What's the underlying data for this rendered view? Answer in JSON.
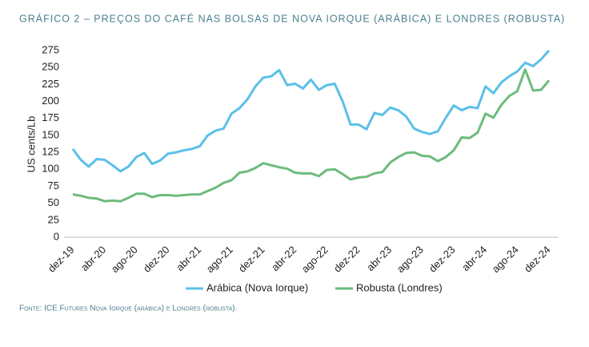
{
  "chart_data": {
    "type": "line",
    "title": "GRÁFICO 2 – PREÇOS DO CAFÉ NAS BOLSAS DE NOVA IORQUE (ARÁBICA) E LONDRES (ROBUSTA)",
    "y_label": "US cents/Lb",
    "source": "Fonte: ICE Futures Nova Iorque (arábica) e Londres (robusta).",
    "categories": [
      "dez-19",
      null,
      null,
      null,
      "abr-20",
      null,
      null,
      null,
      "ago-20",
      null,
      null,
      null,
      "dez-20",
      null,
      null,
      null,
      "abr-21",
      null,
      null,
      null,
      "ago-21",
      null,
      null,
      null,
      "dez-21",
      null,
      null,
      null,
      "abr-22",
      null,
      null,
      null,
      "ago-22",
      null,
      null,
      null,
      "dez-22",
      null,
      null,
      null,
      "abr-23",
      null,
      null,
      null,
      "ago-23",
      null,
      null,
      null,
      "dez-23",
      null,
      null,
      null,
      "abr-24",
      null,
      null,
      null,
      "ago-24",
      null,
      null,
      null,
      "dez-24"
    ],
    "series": [
      {
        "name": "Arábica (Nova Iorque)",
        "color": "#5bc0e8",
        "values": [
          130,
          114,
          104,
          115,
          114,
          106,
          97,
          104,
          118,
          124,
          108,
          113,
          123,
          125,
          128,
          130,
          134,
          150,
          157,
          160,
          182,
          190,
          203,
          222,
          235,
          237,
          246,
          224,
          226,
          219,
          232,
          217,
          224,
          226,
          200,
          166,
          166,
          159,
          183,
          180,
          191,
          187,
          178,
          160,
          155,
          152,
          156,
          176,
          194,
          187,
          192,
          190,
          222,
          212,
          228,
          237,
          244,
          257,
          252,
          262,
          275
        ]
      },
      {
        "name": "Robusta (Londres)",
        "color": "#6dbb7c",
        "values": [
          63,
          61,
          58,
          57,
          53,
          54,
          53,
          58,
          64,
          64,
          59,
          62,
          62,
          61,
          62,
          63,
          63,
          68,
          73,
          80,
          84,
          95,
          97,
          102,
          109,
          106,
          103,
          101,
          95,
          94,
          94,
          90,
          99,
          100,
          93,
          85,
          88,
          89,
          94,
          96,
          110,
          118,
          124,
          125,
          120,
          119,
          112,
          118,
          128,
          147,
          146,
          154,
          182,
          176,
          195,
          208,
          215,
          247,
          216,
          217,
          231
        ]
      }
    ],
    "ylim": [
      0,
      275
    ],
    "yticks": [
      0,
      25,
      50,
      75,
      100,
      125,
      150,
      175,
      200,
      225,
      250,
      275
    ],
    "legend": "bottom"
  }
}
